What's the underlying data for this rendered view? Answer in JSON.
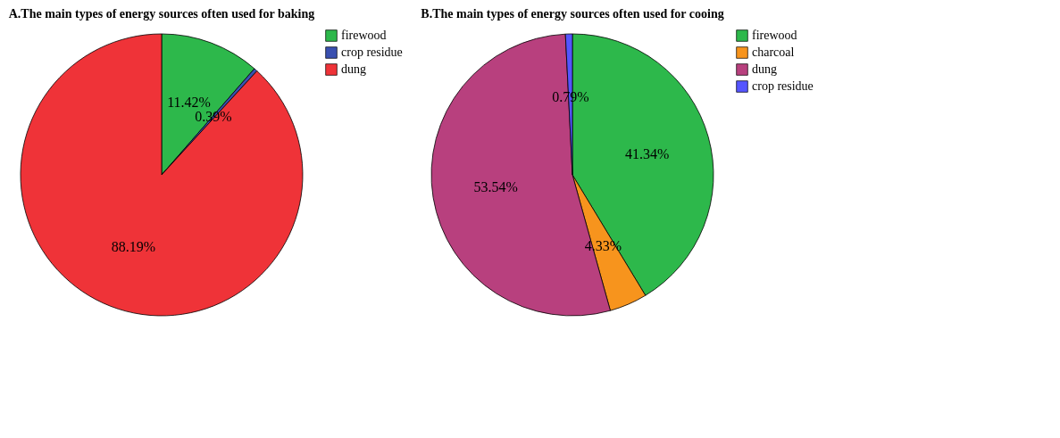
{
  "chart_data": [
    {
      "type": "pie",
      "title": "A.The main types of energy sources often used for baking",
      "categories": [
        "firewood",
        "crop residue",
        "dung"
      ],
      "values": [
        11.42,
        0.39,
        88.19
      ],
      "colors": [
        "#2db84b",
        "#3a50b0",
        "#ef3338"
      ],
      "value_labels": [
        "11.42%",
        "0.39%",
        "88.19%"
      ],
      "legend": "top right"
    },
    {
      "type": "pie",
      "title": "B.The main types of energy sources often used for cooing",
      "categories": [
        "firewood",
        "charcoal",
        "dung",
        "crop residue"
      ],
      "values": [
        41.34,
        4.33,
        53.54,
        0.79
      ],
      "colors": [
        "#2db84b",
        "#f7941d",
        "#b8407e",
        "#5555ff"
      ],
      "value_labels": [
        "41.34%",
        "4.33%",
        "53.54%",
        "0.79%"
      ],
      "legend": "top right"
    }
  ]
}
